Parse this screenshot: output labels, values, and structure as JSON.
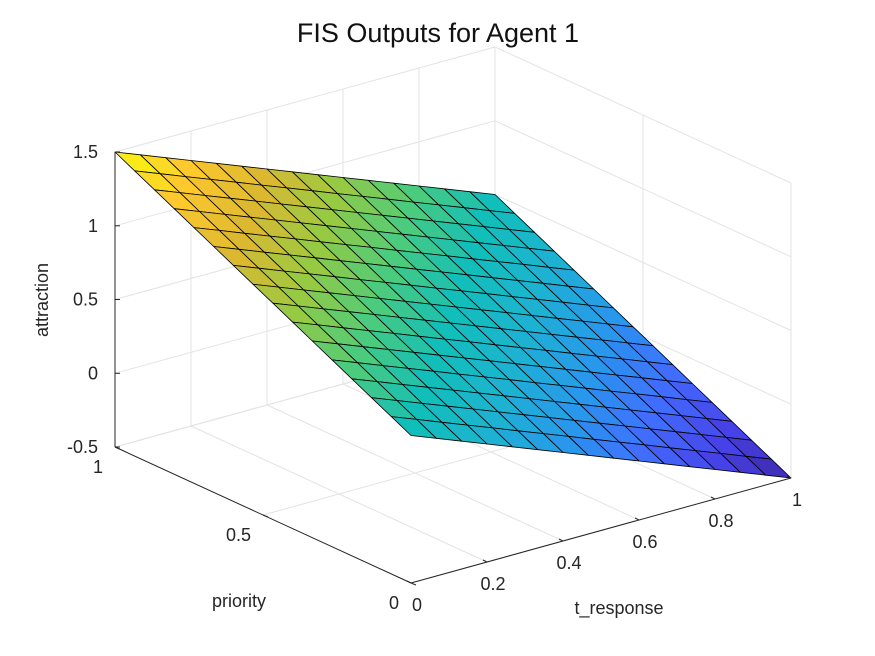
{
  "chart_data": {
    "type": "surface",
    "title": "FIS Outputs for Agent 1",
    "xlabel": "t_response",
    "ylabel": "priority",
    "zlabel": "attraction",
    "xlim": [
      0,
      1
    ],
    "ylim": [
      0,
      1
    ],
    "zlim": [
      -0.5,
      1.5
    ],
    "xticks": [
      0,
      0.2,
      0.4,
      0.6,
      0.8,
      1
    ],
    "yticks": [
      0,
      0.5,
      1
    ],
    "zticks": [
      -0.5,
      0,
      0.5,
      1,
      1.5
    ],
    "xtick_labels": [
      "0",
      "0.2",
      "0.4",
      "0.6",
      "0.8",
      "1"
    ],
    "ytick_labels": [
      "0",
      "0.5",
      "1"
    ],
    "ztick_labels": [
      "-0.5",
      "0",
      "0.5",
      "1",
      "1.5"
    ],
    "grid": true,
    "colormap": "parula",
    "grid_resolution": 15,
    "surface_corners": [
      {
        "x": 0,
        "y": 0,
        "z": 0.5
      },
      {
        "x": 1,
        "y": 0,
        "z": -0.5
      },
      {
        "x": 0,
        "y": 1,
        "z": 1.5
      },
      {
        "x": 1,
        "y": 1,
        "z": 0.5
      }
    ],
    "surface_equation": "z = 0.5 - x + y"
  }
}
